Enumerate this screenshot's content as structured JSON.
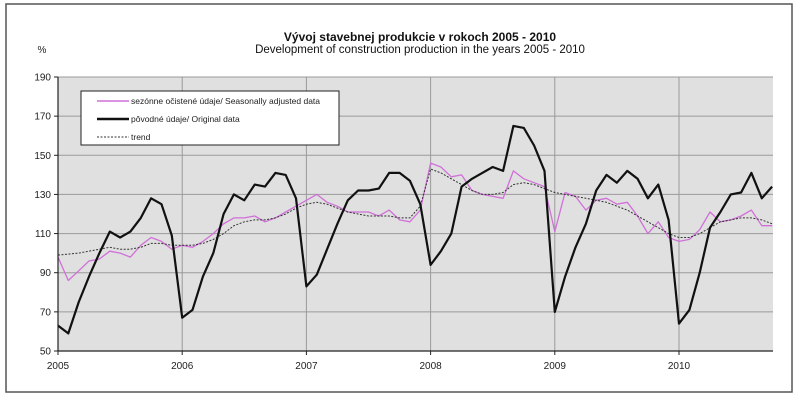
{
  "chart_data": {
    "type": "line",
    "title": "Vývoj stavebnej  produkcie  v rokoch 2005  - 2010",
    "subtitle": "Development of construction production in the years 2005  - 2010",
    "ylabel": "%",
    "xlabel": "",
    "ylim": [
      50,
      190
    ],
    "yticks": [
      50,
      70,
      90,
      110,
      130,
      150,
      170,
      190
    ],
    "xticks": [
      "2005",
      "2006",
      "2007",
      "2008",
      "2009",
      "2010"
    ],
    "x_start": "2005-01",
    "x_frequency": "monthly",
    "grid": true,
    "legend_position": "top-left",
    "colors": {
      "plot_bg": "#e0e0e0",
      "grid": "#9a9a9a",
      "seasonal": "#d070d8",
      "original": "#111111",
      "trend": "#333333"
    },
    "series": [
      {
        "name": "sezónne očistené údaje/ Seasonally adjusted data",
        "style": "solid-thin",
        "values": [
          98,
          86,
          91,
          96,
          97,
          101,
          100,
          98,
          104,
          108,
          106,
          102,
          104,
          103,
          106,
          110,
          115,
          118,
          118,
          119,
          116,
          118,
          121,
          124,
          127,
          130,
          126,
          124,
          121,
          121,
          121,
          119,
          122,
          117,
          116,
          122,
          146,
          144,
          139,
          140,
          132,
          130,
          129,
          128,
          142,
          138,
          136,
          134,
          111,
          131,
          129,
          122,
          127,
          128,
          125,
          126,
          119,
          110,
          116,
          108,
          106,
          107,
          112,
          121,
          116,
          117,
          119,
          122,
          114,
          114
        ]
      },
      {
        "name": "pôvodné údaje/ Original data",
        "style": "solid-thick",
        "values": [
          63,
          59,
          75,
          88,
          100,
          111,
          108,
          111,
          118,
          128,
          125,
          109,
          67,
          71,
          88,
          100,
          120,
          130,
          127,
          135,
          134,
          141,
          140,
          128,
          83,
          89,
          102,
          115,
          127,
          132,
          132,
          133,
          141,
          141,
          137,
          125,
          94,
          101,
          110,
          134,
          138,
          141,
          144,
          142,
          165,
          164,
          155,
          142,
          70,
          88,
          103,
          115,
          132,
          140,
          136,
          142,
          138,
          128,
          135,
          117,
          64,
          71,
          90,
          113,
          121,
          130,
          131,
          141,
          128,
          134
        ]
      },
      {
        "name": "trend",
        "style": "dashed",
        "values": [
          99,
          99.5,
          100,
          101,
          102,
          103,
          102,
          102,
          103,
          105,
          105,
          104,
          104,
          104,
          105,
          107,
          110,
          114,
          116,
          117,
          117,
          118,
          120,
          123,
          125,
          126,
          125,
          123,
          121,
          120,
          119,
          119,
          119,
          118,
          118,
          124,
          143,
          141,
          138,
          135,
          132,
          130,
          130,
          131,
          135,
          136,
          135,
          133,
          131,
          130,
          129,
          128,
          127,
          126,
          124,
          122,
          119,
          116,
          113,
          110,
          108,
          108,
          110,
          113,
          116,
          117,
          118,
          118,
          117,
          115
        ]
      }
    ]
  }
}
